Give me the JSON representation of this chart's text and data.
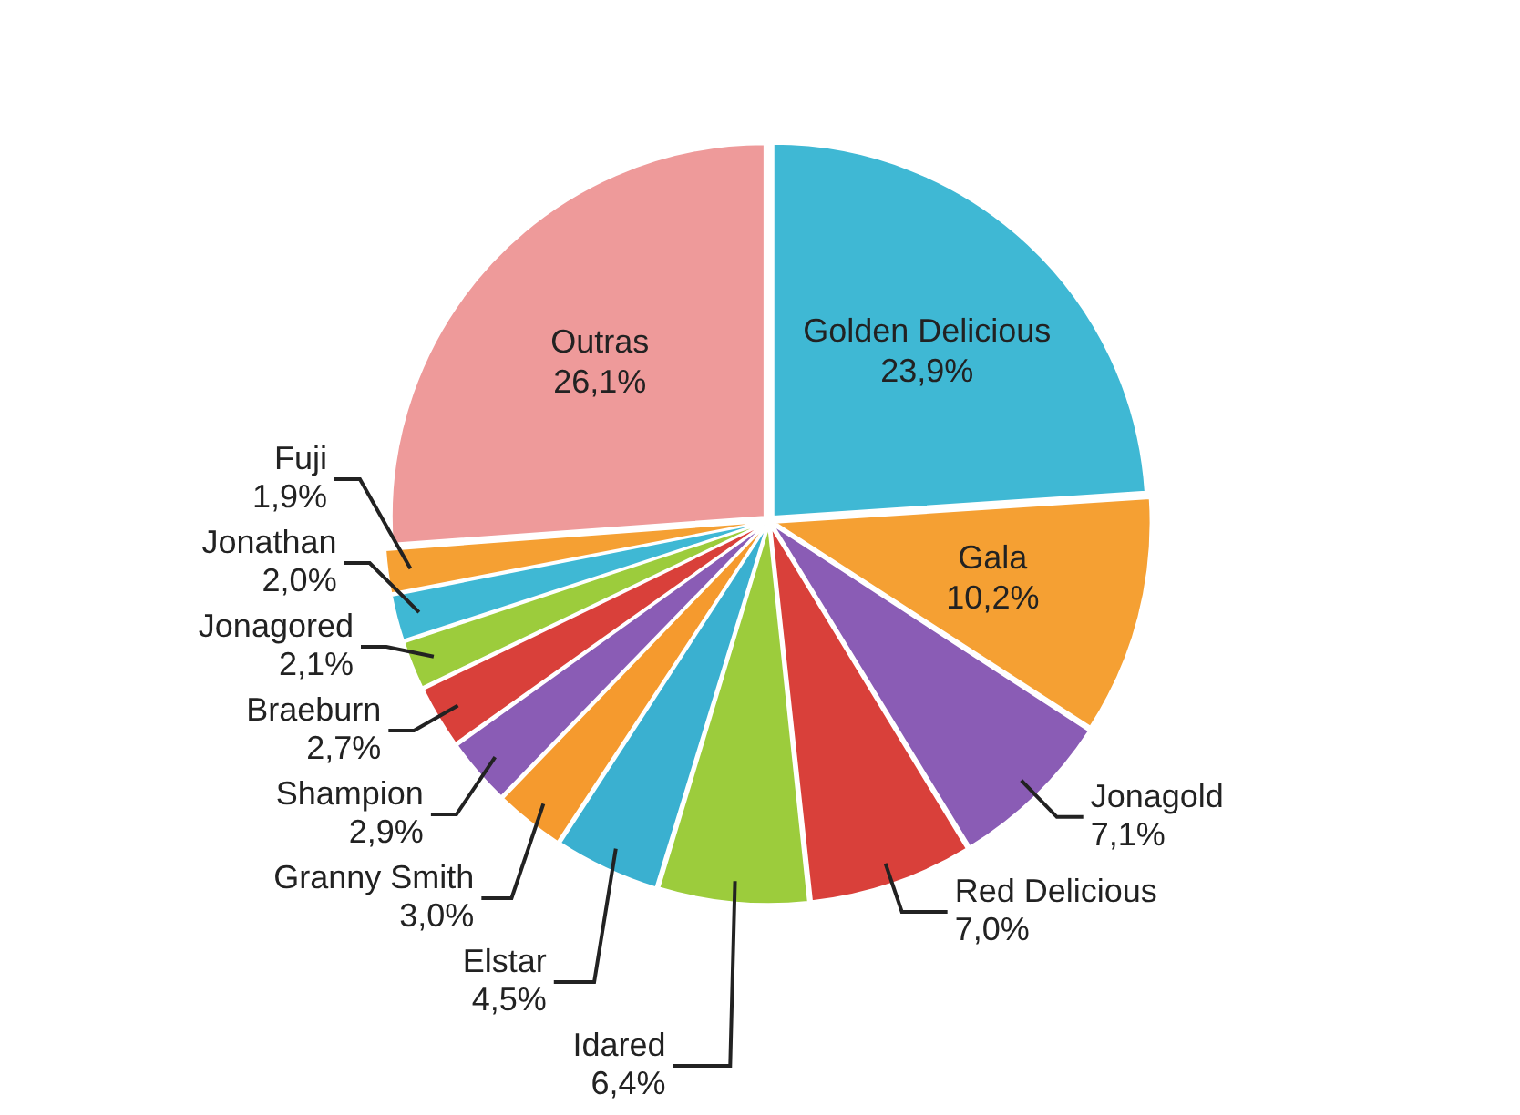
{
  "chart_data": {
    "type": "pie",
    "categories": [
      "Golden Delicious",
      "Gala",
      "Jonagold",
      "Red Delicious",
      "Idared",
      "Elstar",
      "Granny Smith",
      "Shampion",
      "Braeburn",
      "Jonagored",
      "Jonathan",
      "Fuji",
      "Outras"
    ],
    "values": [
      23.9,
      10.2,
      7.1,
      7.0,
      6.4,
      4.5,
      3.0,
      2.9,
      2.7,
      2.1,
      2.0,
      1.9,
      26.1
    ],
    "value_labels": [
      "23,9%",
      "10,2%",
      "7,1%",
      "7,0%",
      "6,4%",
      "4,5%",
      "3,0%",
      "2,9%",
      "2,7%",
      "2,1%",
      "2,0%",
      "1,9%",
      "26,1%"
    ],
    "colors": [
      "#3fb8d4",
      "#f5a033",
      "#8a5cb5",
      "#d9403a",
      "#9ccc3c",
      "#3ab0d0",
      "#f59a2e",
      "#8a5cb5",
      "#d9403a",
      "#9ccc3c",
      "#3fb8d4",
      "#f5a033",
      "#ee9a9a"
    ]
  }
}
